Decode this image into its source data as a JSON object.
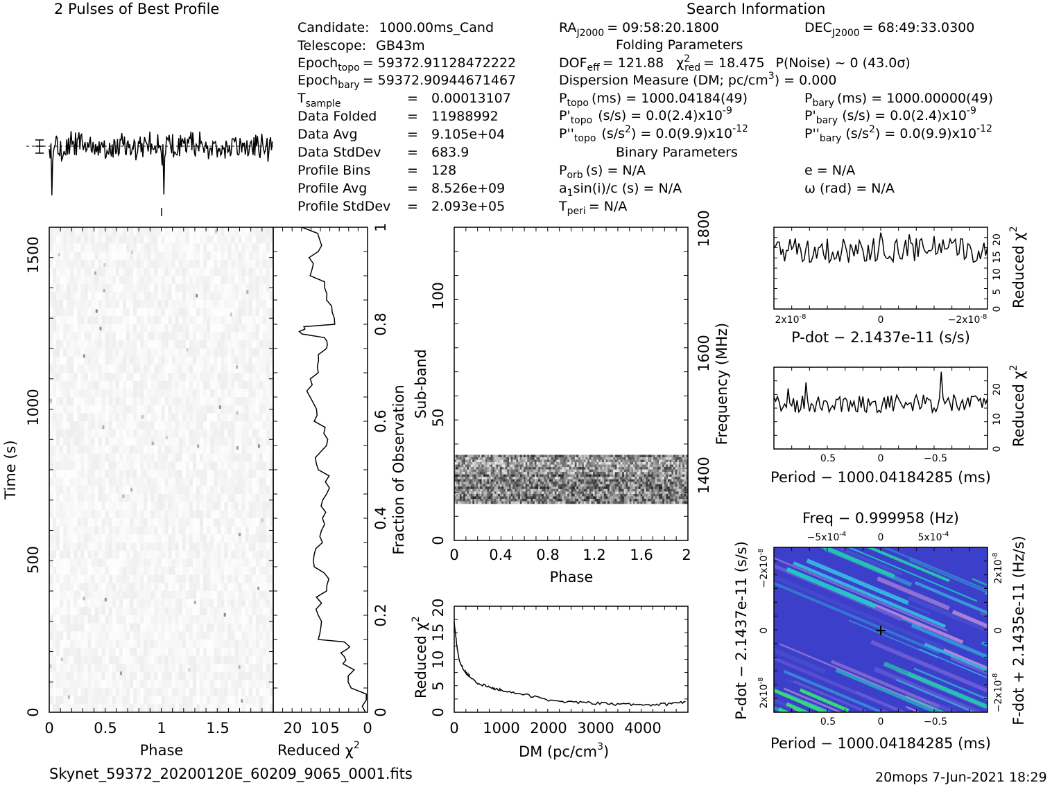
{
  "title_profile": "2 Pulses of Best Profile",
  "title_search": "Search Information",
  "filename": "Skynet_59372_20200120E_60209_9065_0001.fits",
  "footer_user": "20mops",
  "footer_date": "7-Jun-2021 18:29",
  "info_left": [
    {
      "label": "Candidate:",
      "value": "1000.00ms_Cand"
    },
    {
      "label": "Telescope:",
      "value": "GB43m"
    },
    {
      "label": "Epoch",
      "sub": "topo",
      "value": "= 59372.91128472222"
    },
    {
      "label": "Epoch",
      "sub": "bary",
      "value": "= 59372.90944671467"
    },
    {
      "label": "T",
      "sub": "sample",
      "value": "=",
      "value2": "0.00013107"
    },
    {
      "label": "Data Folded",
      "value": "=",
      "value2": "11988992"
    },
    {
      "label": "Data Avg",
      "value": "=",
      "value2": "9.105e+04"
    },
    {
      "label": "Data StdDev",
      "value": "=",
      "value2": "683.9"
    },
    {
      "label": "Profile Bins",
      "value": "=",
      "value2": "128"
    },
    {
      "label": "Profile Avg",
      "value": "=",
      "value2": "8.526e+09"
    },
    {
      "label": "Profile StdDev",
      "value": "=",
      "value2": "2.093e+05"
    }
  ],
  "info_mid": {
    "ra": "= 09:58:20.1800",
    "folding_title": "Folding Parameters",
    "dof": "= 121.88",
    "chi2": "= 18.475",
    "pnoise": "P(Noise) ~ 0    (43.0σ)",
    "dm_line": "Dispersion Measure (DM; pc/cm",
    "dm_value": ") = 0.000",
    "ptopo": "(ms) =  1000.04184(49)",
    "pdtopo": "(s/s) = 0.0(2.4)x10",
    "pdtopo_exp": "-9",
    "pddtopo": "(s/s",
    "pddtopo_val": ") = 0.0(9.9)x10",
    "pddtopo_exp": "-12",
    "binary_title": "Binary Parameters",
    "porb": "(s) = N/A",
    "a1": "sin(i)/c (s) = N/A",
    "tperi": "= N/A"
  },
  "info_right": {
    "dec": "= 68:49:33.0300",
    "pbary": "(ms) =  1000.00000(49)",
    "pdbary": "(s/s) = 0.0(2.4)x10",
    "pdbary_exp": "-9",
    "pddbary": "(s/s",
    "pddbary_val": ") = 0.0(9.9)x10",
    "pddbary_exp": "-12",
    "ecc": "e = N/A",
    "omega": "ω (rad) = N/A"
  },
  "axes": {
    "time_phase_xlabel": "Phase",
    "time_ylabel": "Time (s)",
    "redchi_xlabel": "Reduced χ",
    "fraction_ylabel": "Fraction of Observation",
    "subband_ylabel": "Sub-band",
    "subband_xlabel": "Phase",
    "freq_ylabel": "Frequency (MHz)",
    "dm_xlabel": "DM (pc/cm",
    "dm_ylabel": "Reduced χ",
    "pdot_xlabel": "P-dot − 2.1437e-11 (s/s)",
    "pdot_ylabel": "Reduced χ",
    "period_xlabel": "Period − 1000.04184285 (ms)",
    "period_ylabel": "Reduced χ",
    "pp_top": "Freq − 0.999958 (Hz)",
    "pp_xlabel": "Period − 1000.04184285 (ms)",
    "pp_ylabel": "P-dot − 2.1437e-11 (s/s)",
    "pp_rlabel": "F-dot + 2.1435e-11 (Hz/s)"
  },
  "ticks": {
    "time_phase_x": [
      "0",
      "0.5",
      "1",
      "1.5"
    ],
    "time_y": [
      "0",
      "500",
      "1000",
      "1500"
    ],
    "redchi_x": [
      "20",
      "10",
      "5",
      "0"
    ],
    "fraction_y": [
      "0",
      "0.2",
      "0.4",
      "0.6",
      "0.8",
      "1"
    ],
    "subband_x": [
      "0",
      "0.4",
      "0.8",
      "1.2",
      "1.6",
      "2"
    ],
    "subband_y": [
      "0",
      "50",
      "100"
    ],
    "freq_y": [
      "1400",
      "1600",
      "1800"
    ],
    "dm_x": [
      "0",
      "1000",
      "2000",
      "3000",
      "4000"
    ],
    "dm_y": [
      "0",
      "5",
      "10",
      "15",
      "20"
    ],
    "pdot_x": [
      "2x10",
      "0",
      "−2x10"
    ],
    "pdot_x_exp": "-8",
    "pdot_y": [
      "0",
      "5",
      "10",
      "15",
      "20"
    ],
    "period_x": [
      "0.5",
      "0",
      "−0.5"
    ],
    "period_y": [
      "0",
      "10",
      "20"
    ],
    "pp_x": [
      "0.5",
      "0",
      "−0.5"
    ],
    "pp_top_x": [
      "−5x10",
      "0",
      "5x10"
    ],
    "pp_top_exp": "-4",
    "pp_y": [
      "−2x10",
      "0",
      "2x10"
    ],
    "pp_y_exp": "-8",
    "pp_r": [
      "2x10",
      "0",
      "−2x10"
    ],
    "pp_r_exp": "-8"
  },
  "chart_data": [
    {
      "type": "line",
      "name": "profile",
      "x": "phase 0-2",
      "note": "2 pulses of folded profile, 128 bins"
    },
    {
      "type": "heatmap",
      "name": "time-phase",
      "xlim": [
        0,
        2
      ],
      "ylim": [
        0,
        1590
      ]
    },
    {
      "type": "line",
      "name": "reduced chi2 vs time",
      "y_fraction": [
        0,
        0.05,
        0.1,
        0.13,
        0.15,
        0.2,
        0.25,
        0.3,
        0.35,
        0.4,
        0.45,
        0.5,
        0.55,
        0.6,
        0.65,
        0.7,
        0.75,
        0.78,
        0.8,
        0.85,
        0.9,
        0.95,
        1.0
      ],
      "x_redchi": [
        0.5,
        4,
        6,
        5,
        12,
        12,
        10,
        13,
        11,
        11,
        10,
        12,
        10,
        13,
        14,
        12,
        10,
        16,
        8,
        10,
        14,
        12,
        16
      ],
      "xlim": [
        23,
        0
      ]
    },
    {
      "type": "heatmap",
      "name": "sub-band vs phase",
      "xlim": [
        0,
        2
      ],
      "ylim": [
        0,
        128
      ]
    },
    {
      "type": "line",
      "name": "reduced chi2 vs DM",
      "x": [
        0,
        50,
        100,
        200,
        300,
        500,
        800,
        1000,
        1500,
        2000,
        2500,
        3000,
        3500,
        4000,
        4500,
        4900
      ],
      "y": [
        17,
        13,
        10,
        8,
        7,
        5.5,
        4.5,
        4.2,
        3.3,
        2.3,
        1.9,
        1.7,
        1.5,
        1.4,
        1.5,
        2.0
      ],
      "xlim": [
        0,
        4950
      ],
      "ylim": [
        0,
        20
      ]
    },
    {
      "type": "line",
      "name": "reduced chi2 vs P-dot",
      "ylim": [
        0,
        23
      ]
    },
    {
      "type": "line",
      "name": "reduced chi2 vs Period",
      "ylim": [
        0,
        27
      ]
    },
    {
      "type": "heatmap",
      "name": "P-Pdot plane"
    }
  ]
}
